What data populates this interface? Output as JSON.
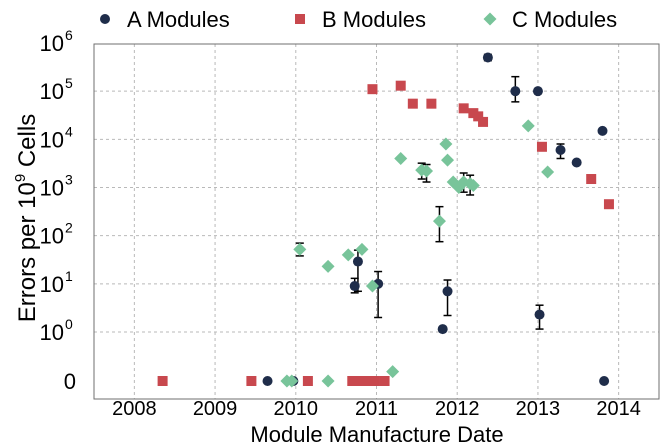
{
  "chart_data": {
    "type": "scatter",
    "title": "",
    "xlabel": "Module Manufacture Date",
    "ylabel_main": "Errors per 10",
    "ylabel_exp": "9",
    "ylabel_tail": " Cells",
    "x_categories": [
      "2008",
      "2009",
      "2010",
      "2011",
      "2012",
      "2013",
      "2014"
    ],
    "xlim": [
      2007.5,
      2014.5
    ],
    "yscale": "log-with-zero",
    "ylim_exponent": [
      0,
      6
    ],
    "y_tick_labels": [
      {
        "value": 0,
        "base": "0",
        "exp": ""
      },
      {
        "value": 1,
        "base": "10",
        "exp": "0"
      },
      {
        "value": 10,
        "base": "10",
        "exp": "1"
      },
      {
        "value": 100,
        "base": "10",
        "exp": "2"
      },
      {
        "value": 1000,
        "base": "10",
        "exp": "3"
      },
      {
        "value": 10000,
        "base": "10",
        "exp": "4"
      },
      {
        "value": 100000,
        "base": "10",
        "exp": "5"
      },
      {
        "value": 1000000,
        "base": "10",
        "exp": "6"
      }
    ],
    "grid": true,
    "legend_position": "top",
    "series": [
      {
        "name": "A Modules",
        "marker": "circle",
        "color": "#1f2d4a",
        "points": [
          {
            "x": 2009.65,
            "y": 0
          },
          {
            "x": 2009.97,
            "y": 0
          },
          {
            "x": 2010.73,
            "y": 9,
            "lo": 6.5,
            "hi": 13
          },
          {
            "x": 2010.77,
            "y": 29,
            "lo": 7,
            "hi": 50
          },
          {
            "x": 2011.02,
            "y": 10,
            "lo": 2,
            "hi": 18
          },
          {
            "x": 2011.82,
            "y": 1.15
          },
          {
            "x": 2011.88,
            "y": 7,
            "lo": 2.2,
            "hi": 12
          },
          {
            "x": 2012.38,
            "y": 500000,
            "lo": 430000,
            "hi": 580000
          },
          {
            "x": 2012.72,
            "y": 100000,
            "lo": 60000,
            "hi": 200000
          },
          {
            "x": 2013.0,
            "y": 100000
          },
          {
            "x": 2013.02,
            "y": 2.3,
            "lo": 1.15,
            "hi": 3.6
          },
          {
            "x": 2013.28,
            "y": 6000,
            "lo": 4000,
            "hi": 8000
          },
          {
            "x": 2013.48,
            "y": 3300
          },
          {
            "x": 2013.8,
            "y": 15000
          },
          {
            "x": 2013.82,
            "y": 0
          }
        ]
      },
      {
        "name": "B Modules",
        "marker": "square",
        "color": "#c8484e",
        "points": [
          {
            "x": 2008.35,
            "y": 0
          },
          {
            "x": 2009.45,
            "y": 0
          },
          {
            "x": 2010.15,
            "y": 0
          },
          {
            "x": 2010.7,
            "y": 0
          },
          {
            "x": 2010.78,
            "y": 0
          },
          {
            "x": 2010.86,
            "y": 0
          },
          {
            "x": 2010.98,
            "y": 0
          },
          {
            "x": 2011.1,
            "y": 0
          },
          {
            "x": 2010.95,
            "y": 110000
          },
          {
            "x": 2011.3,
            "y": 130000
          },
          {
            "x": 2011.45,
            "y": 55000
          },
          {
            "x": 2011.68,
            "y": 55000
          },
          {
            "x": 2012.08,
            "y": 44000
          },
          {
            "x": 2012.2,
            "y": 35000
          },
          {
            "x": 2012.26,
            "y": 30000
          },
          {
            "x": 2012.32,
            "y": 23000
          },
          {
            "x": 2013.05,
            "y": 7000
          },
          {
            "x": 2013.66,
            "y": 1500
          },
          {
            "x": 2013.88,
            "y": 450
          }
        ]
      },
      {
        "name": "C Modules",
        "marker": "diamond",
        "color": "#78c49a",
        "points": [
          {
            "x": 2009.89,
            "y": 0
          },
          {
            "x": 2009.95,
            "y": 0
          },
          {
            "x": 2010.05,
            "y": 52,
            "lo": 38,
            "hi": 70
          },
          {
            "x": 2010.4,
            "y": 23
          },
          {
            "x": 2010.4,
            "y": 0
          },
          {
            "x": 2010.65,
            "y": 40
          },
          {
            "x": 2010.82,
            "y": 52
          },
          {
            "x": 2010.95,
            "y": 9
          },
          {
            "x": 2011.2,
            "y": 0.15
          },
          {
            "x": 2011.3,
            "y": 4000
          },
          {
            "x": 2011.56,
            "y": 2300,
            "lo": 1500,
            "hi": 3200
          },
          {
            "x": 2011.62,
            "y": 2200,
            "lo": 1300,
            "hi": 3000
          },
          {
            "x": 2011.78,
            "y": 200,
            "lo": 75,
            "hi": 400
          },
          {
            "x": 2011.86,
            "y": 8000
          },
          {
            "x": 2011.88,
            "y": 3700
          },
          {
            "x": 2011.95,
            "y": 1300
          },
          {
            "x": 2012.02,
            "y": 1000
          },
          {
            "x": 2012.08,
            "y": 1300,
            "lo": 800,
            "hi": 2000
          },
          {
            "x": 2012.16,
            "y": 1200,
            "lo": 700,
            "hi": 1800
          },
          {
            "x": 2012.2,
            "y": 1100
          },
          {
            "x": 2012.88,
            "y": 19000
          },
          {
            "x": 2013.12,
            "y": 2100
          }
        ]
      }
    ]
  }
}
